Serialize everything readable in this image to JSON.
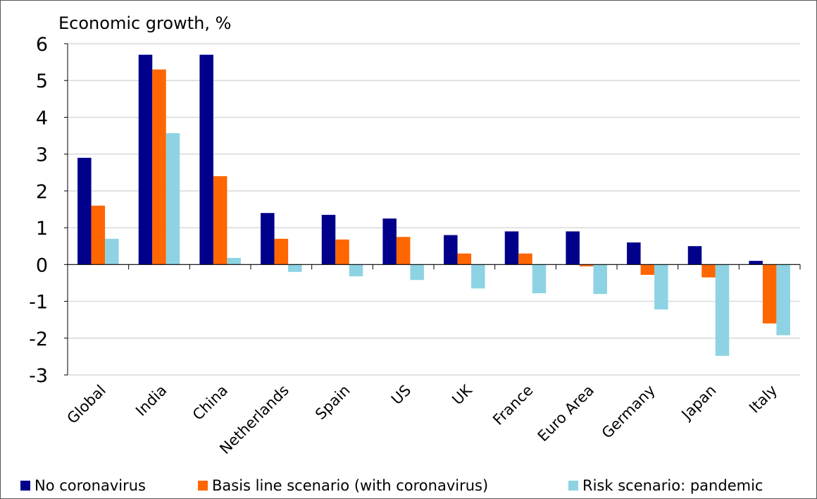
{
  "chart_data": {
    "type": "bar",
    "title": "",
    "ylabel": "Economic growth, %",
    "xlabel": "",
    "ylim": [
      -3,
      6
    ],
    "yticks": [
      6,
      5,
      4,
      3,
      2,
      1,
      0,
      -1,
      -2,
      -3
    ],
    "grid": true,
    "legend_position": "bottom",
    "categories": [
      "Global",
      "India",
      "China",
      "Netherlands",
      "Spain",
      "US",
      "UK",
      "France",
      "Euro Area",
      "Germany",
      "Japan",
      "Italy"
    ],
    "series": [
      {
        "name": "No coronavirus",
        "color": "#00008B",
        "values": [
          2.9,
          5.7,
          5.7,
          1.4,
          1.35,
          1.25,
          0.8,
          0.9,
          0.9,
          0.6,
          0.5,
          0.1
        ]
      },
      {
        "name": "Basis line scenario (with coronavirus)",
        "color": "#FF6600",
        "values": [
          1.6,
          5.3,
          2.4,
          0.7,
          0.68,
          0.75,
          0.3,
          0.3,
          -0.05,
          -0.28,
          -0.35,
          -1.6
        ]
      },
      {
        "name": "Risk scenario: pandemic",
        "color": "#8DD3E4",
        "values": [
          0.7,
          3.57,
          0.18,
          -0.2,
          -0.32,
          -0.42,
          -0.65,
          -0.78,
          -0.8,
          -1.22,
          -2.48,
          -1.92
        ]
      }
    ]
  }
}
